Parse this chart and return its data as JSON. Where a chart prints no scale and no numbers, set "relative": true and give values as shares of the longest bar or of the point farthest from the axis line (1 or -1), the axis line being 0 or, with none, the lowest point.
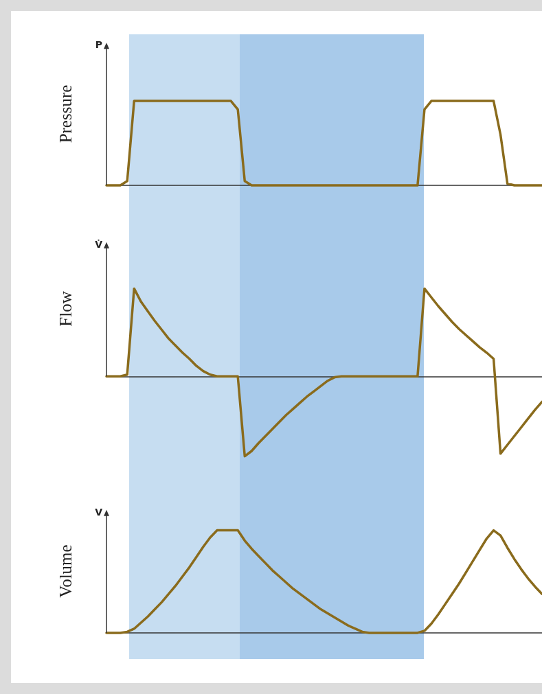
{
  "chart_data": [
    {
      "type": "line",
      "ylabel": "Pressure",
      "annotations": [
        "P"
      ],
      "relative": true,
      "tick_labels": false,
      "marker": "none",
      "line_style": "solid",
      "categories": [
        null,
        null,
        null,
        null,
        null,
        null,
        null,
        null,
        null,
        null,
        null,
        null,
        null,
        null,
        null,
        null,
        null,
        null,
        null,
        null,
        null,
        null,
        null,
        null,
        null,
        null,
        null,
        null,
        null,
        null,
        null,
        null,
        null,
        null,
        null,
        null,
        null,
        null,
        null,
        null,
        null,
        null,
        null,
        null,
        null,
        null,
        null,
        null,
        null,
        null,
        null,
        null,
        null,
        null,
        null,
        null,
        null,
        null,
        null,
        null,
        null,
        null,
        null,
        null
      ],
      "series": [
        {
          "color": "#8a6b1c",
          "values": [
            0,
            0,
            0,
            0.05,
            1,
            1,
            1,
            1,
            1,
            1,
            1,
            1,
            1,
            1,
            1,
            1,
            1,
            1,
            1,
            0.9,
            0.05,
            0,
            0,
            0,
            0,
            0,
            0,
            0,
            0,
            0,
            0,
            0,
            0,
            0,
            0,
            0,
            0,
            0,
            0,
            0,
            0,
            0,
            0,
            0,
            0,
            0,
            0.9,
            1,
            1,
            1,
            1,
            1,
            1,
            1,
            1,
            1,
            1,
            0.6,
            0.02,
            0,
            0,
            0,
            0,
            0
          ]
        }
      ]
    },
    {
      "type": "line",
      "ylabel": "Flow",
      "annotations": [
        "V̇"
      ],
      "relative": true,
      "tick_labels": false,
      "marker": "none",
      "line_style": "solid",
      "categories": [
        null,
        null,
        null,
        null,
        null,
        null,
        null,
        null,
        null,
        null,
        null,
        null,
        null,
        null,
        null,
        null,
        null,
        null,
        null,
        null,
        null,
        null,
        null,
        null,
        null,
        null,
        null,
        null,
        null,
        null,
        null,
        null,
        null,
        null,
        null,
        null,
        null,
        null,
        null,
        null,
        null,
        null,
        null,
        null,
        null,
        null,
        null,
        null,
        null,
        null,
        null,
        null,
        null,
        null,
        null,
        null,
        null,
        null,
        null,
        null,
        null,
        null,
        null,
        null
      ],
      "series": [
        {
          "color": "#8a6b1c",
          "values": [
            0,
            0,
            0,
            0.02,
            1,
            0.85,
            0.74,
            0.63,
            0.53,
            0.43,
            0.35,
            0.27,
            0.2,
            0.12,
            0.06,
            0.02,
            0,
            0,
            0,
            0,
            -0.91,
            -0.85,
            -0.76,
            -0.68,
            -0.6,
            -0.52,
            -0.44,
            -0.37,
            -0.3,
            -0.23,
            -0.17,
            -0.11,
            -0.05,
            -0.01,
            0,
            0,
            0,
            0,
            0,
            0,
            0,
            0,
            0,
            0,
            0,
            0,
            1,
            0.9,
            0.8,
            0.71,
            0.62,
            0.54,
            0.47,
            0.4,
            0.33,
            0.27,
            0.2,
            -0.88,
            -0.78,
            -0.68,
            -0.58,
            -0.48,
            -0.38,
            -0.29
          ]
        }
      ]
    },
    {
      "type": "line",
      "ylabel": "Volume",
      "annotations": [
        "V"
      ],
      "relative": true,
      "tick_labels": false,
      "marker": "none",
      "line_style": "solid",
      "categories": [
        null,
        null,
        null,
        null,
        null,
        null,
        null,
        null,
        null,
        null,
        null,
        null,
        null,
        null,
        null,
        null,
        null,
        null,
        null,
        null,
        null,
        null,
        null,
        null,
        null,
        null,
        null,
        null,
        null,
        null,
        null,
        null,
        null,
        null,
        null,
        null,
        null,
        null,
        null,
        null,
        null,
        null,
        null,
        null,
        null,
        null,
        null,
        null,
        null,
        null,
        null,
        null,
        null,
        null,
        null,
        null,
        null,
        null,
        null,
        null,
        null,
        null,
        null,
        null
      ],
      "series": [
        {
          "color": "#8a6b1c",
          "values": [
            0,
            0,
            0,
            0.01,
            0.04,
            0.1,
            0.16,
            0.23,
            0.3,
            0.38,
            0.46,
            0.55,
            0.64,
            0.74,
            0.84,
            0.93,
            1,
            1,
            1,
            1,
            0.9,
            0.82,
            0.75,
            0.68,
            0.61,
            0.55,
            0.49,
            0.43,
            0.38,
            0.33,
            0.28,
            0.23,
            0.19,
            0.15,
            0.11,
            0.07,
            0.04,
            0.01,
            0,
            0,
            0,
            0,
            0,
            0,
            0,
            0,
            0.02,
            0.09,
            0.18,
            0.28,
            0.38,
            0.48,
            0.59,
            0.7,
            0.81,
            0.92,
            1,
            0.95,
            0.83,
            0.72,
            0.62,
            0.53,
            0.45,
            0.38
          ]
        }
      ]
    }
  ]
}
